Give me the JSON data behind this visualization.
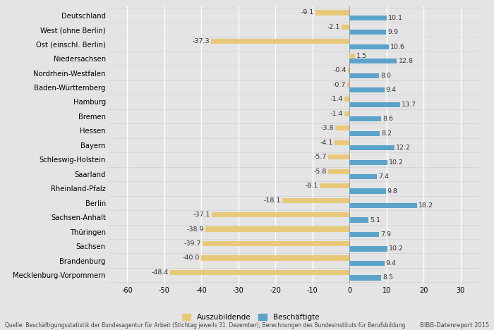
{
  "categories": [
    "Deutschland",
    "West (ohne Berlin)",
    "Ost (einschl. Berlin)",
    "Niedersachsen",
    "Nordrhein-Westfalen",
    "Baden-Württemberg",
    "Hamburg",
    "Bremen",
    "Hessen",
    "Bayern",
    "Schleswig-Holstein",
    "Saarland",
    "Rheinland-Pfalz",
    "Berlin",
    "Sachsen-Anhalt",
    "Thüringen",
    "Sachsen",
    "Brandenburg",
    "Mecklenburg-Vorpommern"
  ],
  "auszubildende": [
    -9.1,
    -2.1,
    -37.3,
    1.5,
    -0.4,
    -0.7,
    -1.4,
    -1.4,
    -3.8,
    -4.1,
    -5.7,
    -5.8,
    -8.1,
    -18.1,
    -37.1,
    -38.9,
    -39.7,
    -40.0,
    -48.4
  ],
  "beschaeftigte": [
    10.1,
    9.9,
    10.6,
    12.8,
    8.0,
    9.4,
    13.7,
    8.6,
    8.2,
    12.2,
    10.2,
    7.4,
    9.8,
    18.2,
    5.1,
    7.9,
    10.2,
    9.4,
    8.5
  ],
  "color_auszubildende": "#E8C97A",
  "color_beschaeftigte": "#5BA3C9",
  "xlim": [
    -65,
    35
  ],
  "xticks": [
    -60,
    -50,
    -40,
    -30,
    -20,
    -10,
    0,
    10,
    20,
    30
  ],
  "background_color": "#E4E4E4",
  "grid_color": "#FFFFFF",
  "bar_height": 0.35,
  "legend_auszubildende": "Auszubildende",
  "legend_beschaeftigte": "Beschäftigte",
  "footnote": "Quelle: Beschäftigungsstatistik der Bundesagentur für Arbeit (Stichtag jeweils 31. Dezember); Berechnungen des Bundesinstituts für Berufsbildung",
  "brand": "BIBB-Datenreport 2015",
  "label_fontsize": 6.8,
  "tick_fontsize": 7.0,
  "ytick_fontsize": 7.2
}
